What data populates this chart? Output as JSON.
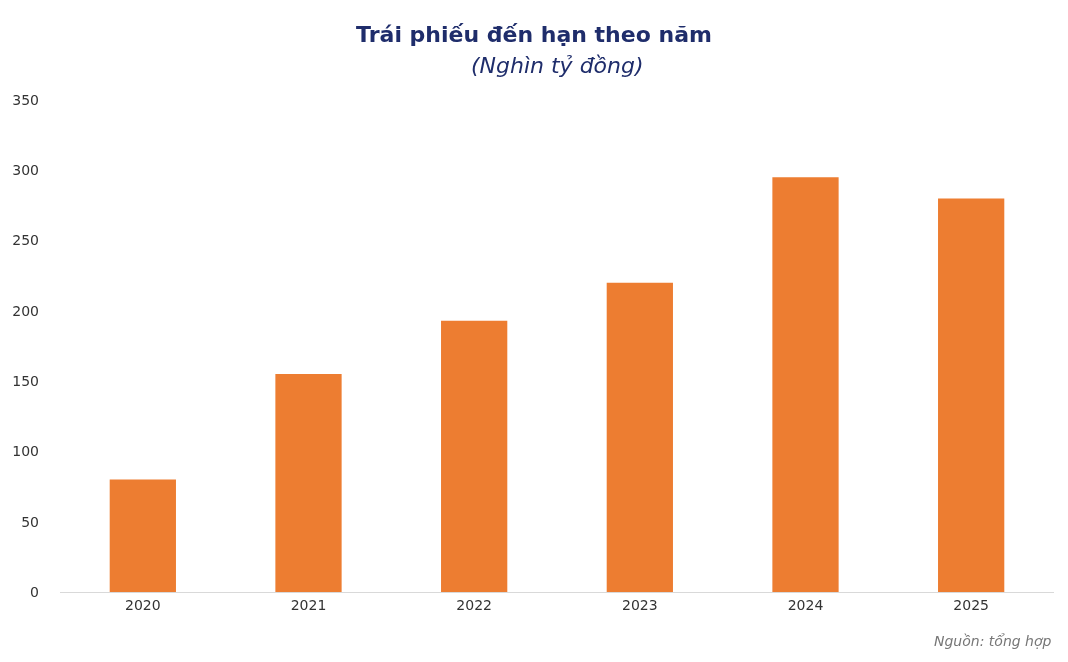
{
  "chart_data": {
    "type": "bar",
    "title": "Trái phiếu đến hạn theo năm",
    "subtitle": "(Nghìn tỷ đồng)",
    "categories": [
      "2020",
      "2021",
      "2022",
      "2023",
      "2024",
      "2025"
    ],
    "values": [
      80,
      155,
      193,
      220,
      295,
      280
    ],
    "color": "#ed7d31",
    "ylim": [
      0,
      350
    ],
    "yticks": [
      0,
      50,
      100,
      150,
      200,
      250,
      300,
      350
    ],
    "grid": false,
    "annotations": [
      "Nguồn: tổng hợp"
    ]
  }
}
